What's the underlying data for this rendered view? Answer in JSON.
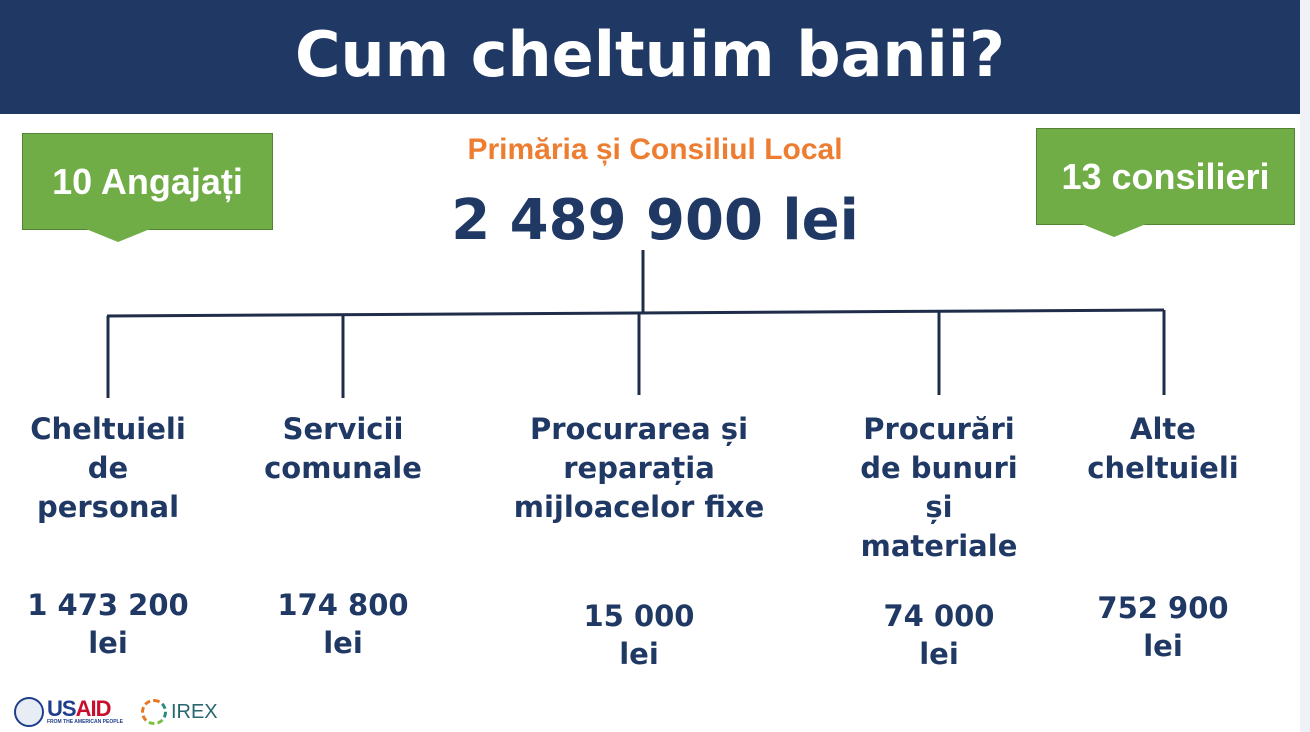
{
  "header": {
    "title": "Cum cheltuim banii?"
  },
  "callouts": {
    "left": "10 Angajați",
    "right": "13 consilieri"
  },
  "root": {
    "name": "Primăria și Consiliul Local",
    "total": "2 489 900 lei"
  },
  "branches": [
    {
      "label": [
        "Cheltuieli",
        "de",
        "personal"
      ],
      "value": [
        "1 473 200",
        "lei"
      ]
    },
    {
      "label": [
        "Servicii",
        "comunale"
      ],
      "value": [
        "174 800",
        "lei"
      ]
    },
    {
      "label": [
        "Procurarea și",
        "reparația",
        "mijloacelor fixe"
      ],
      "value": [
        "15 000",
        "lei"
      ]
    },
    {
      "label": [
        "Procurări",
        "de bunuri",
        "și",
        "materiale"
      ],
      "value": [
        "74 000",
        "lei"
      ]
    },
    {
      "label": [
        "Alte",
        "cheltuieli"
      ],
      "value": [
        "752 900",
        "lei"
      ]
    }
  ],
  "logos": {
    "usaid": "USAID",
    "usaid_tagline": "FROM THE AMERICAN PEOPLE",
    "irex": "IREX"
  },
  "colors": {
    "header": "#1f3864",
    "callout": "#70ad47",
    "subtitle": "#ed7d31",
    "text": "#1f3864"
  }
}
